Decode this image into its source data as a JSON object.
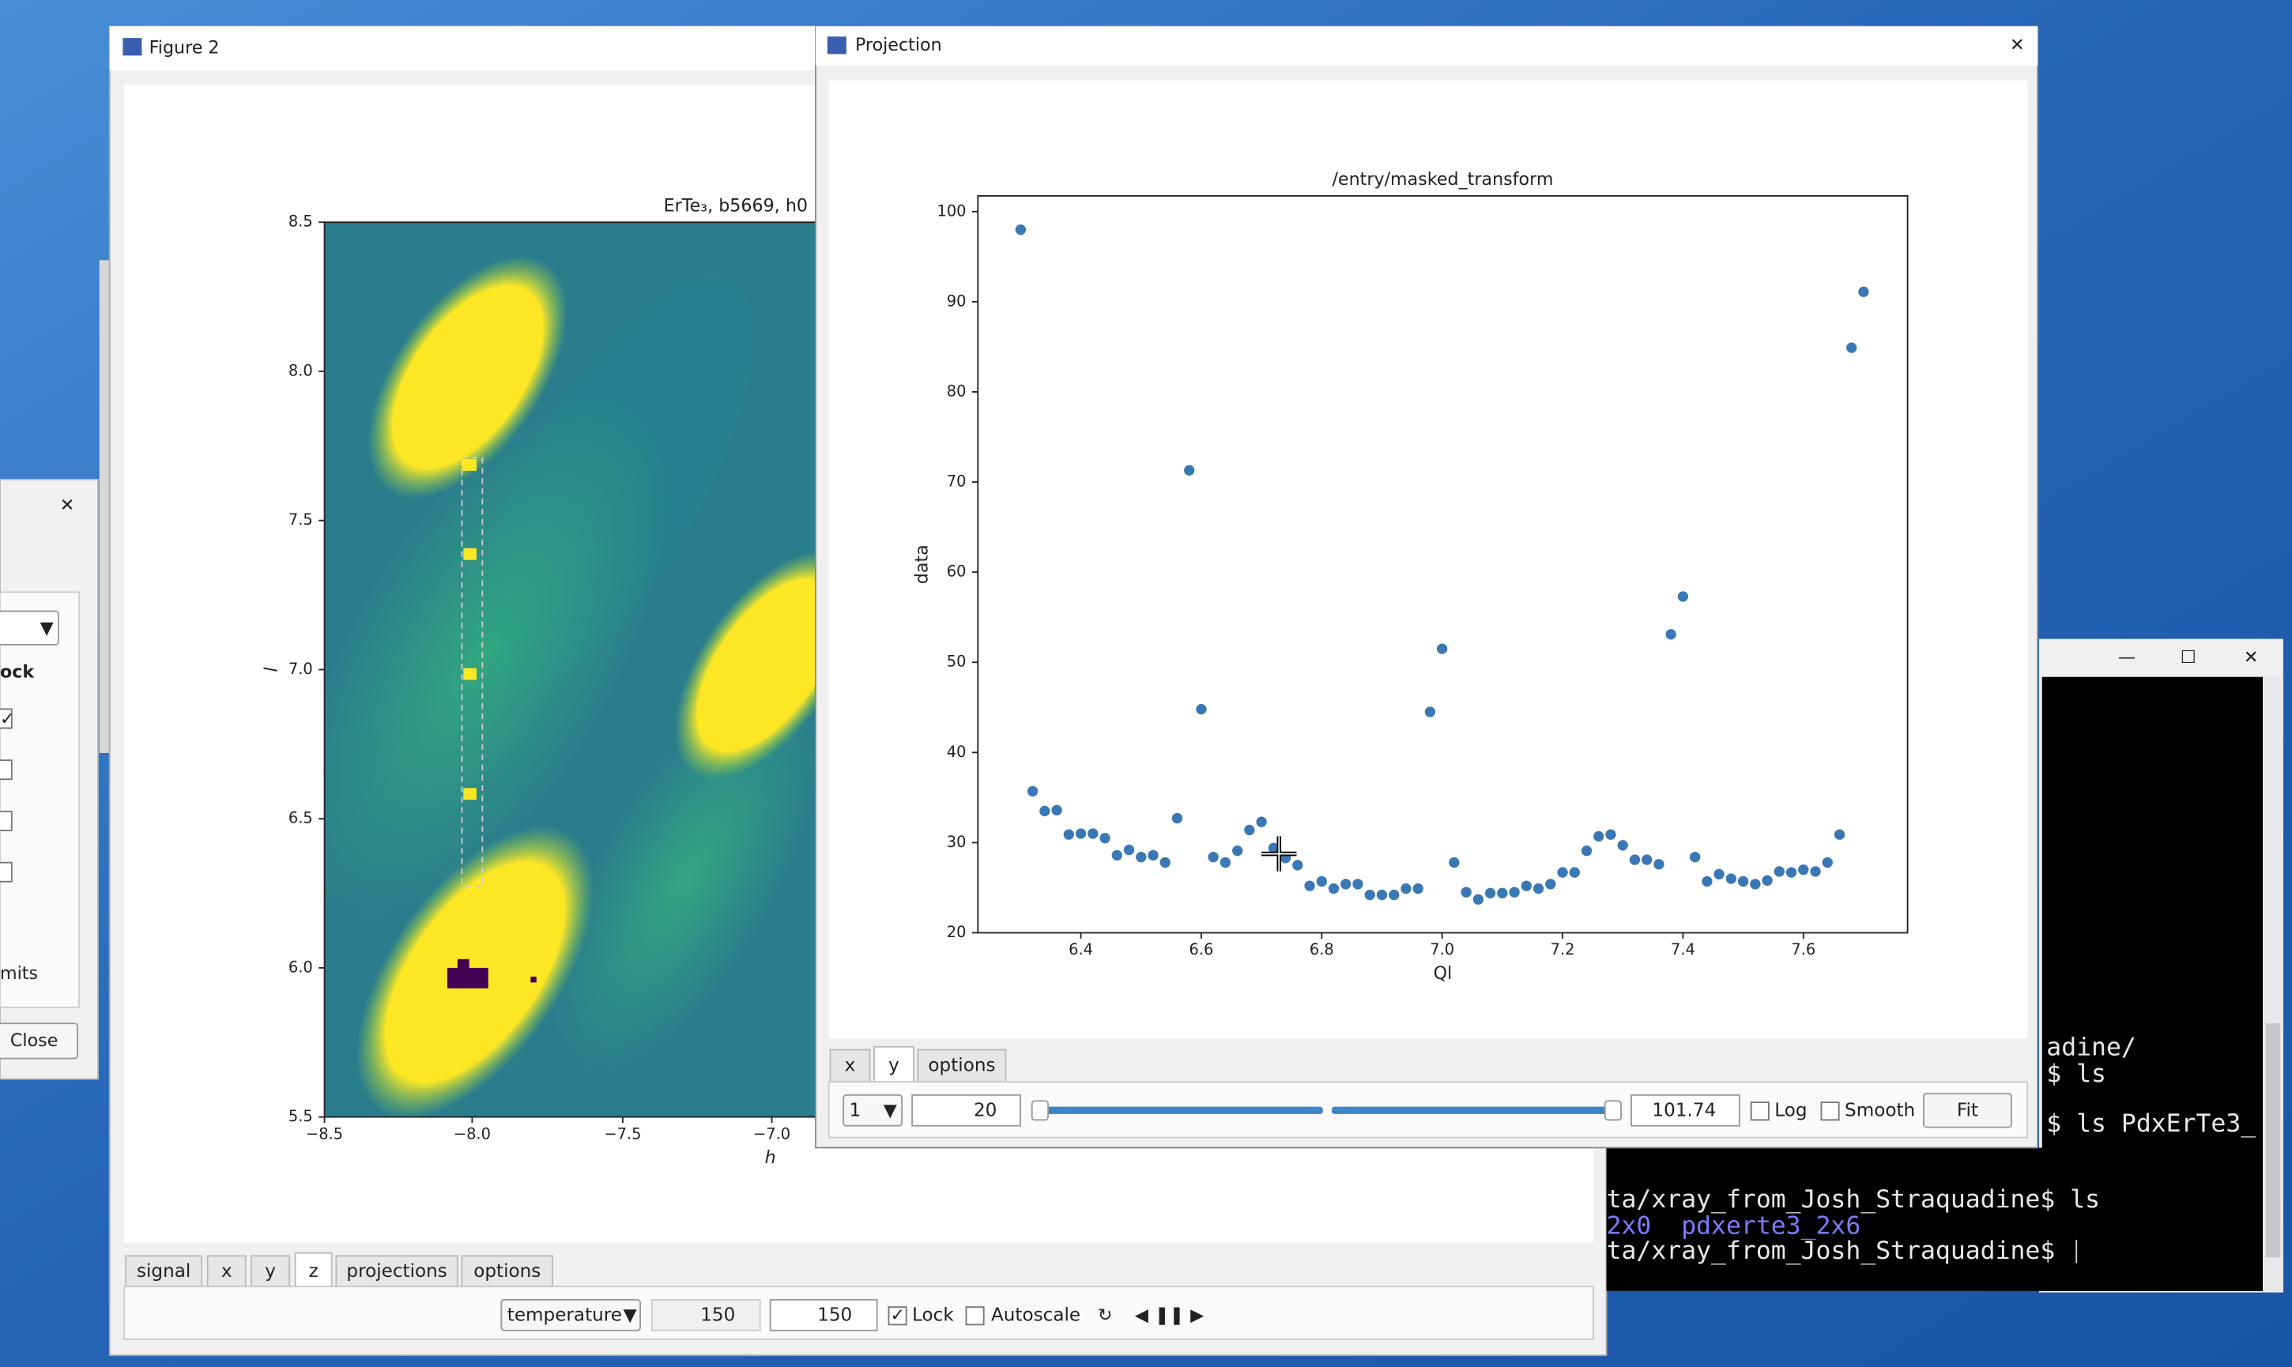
{
  "left_dialog": {
    "label": "ock",
    "limits_label": "mits",
    "close_button": "Close"
  },
  "figure2": {
    "window_title": "Figure 2",
    "plot_title": "ErTe₃, b5669, h0",
    "xlabel": "h",
    "ylabel": "l",
    "xtick_labels": [
      "−8.5",
      "−8.0",
      "−7.5",
      "−7.0"
    ],
    "ytick_labels": [
      "8.5",
      "8.0",
      "7.5",
      "7.0",
      "6.5",
      "6.0",
      "5.5"
    ],
    "tabs": [
      "signal",
      "x",
      "y",
      "z",
      "projections",
      "options"
    ],
    "axis_combo": "temperature",
    "min_value": "150",
    "max_value": "150",
    "lock": "Lock",
    "autoscale": "Autoscale"
  },
  "terminal": {
    "lines": [
      "adine/",
      "$ ls",
      "$ ls PdxErTe3_",
      "ta/xray_from_Josh_Straquadine$ ls",
      "2x0  pdxerte3_2x6",
      "ta/xray_from_Josh_Straquadine$"
    ]
  },
  "projection": {
    "window_title": "Projection",
    "tabs": [
      "x",
      "y",
      "options"
    ],
    "axis_combo": "1",
    "min_value": "20",
    "max_value": "101.74",
    "log": "Log",
    "smooth": "Smooth",
    "fit_button": "Fit"
  },
  "chart_data": {
    "type": "scatter",
    "title": "/entry/masked_transform",
    "x_label": "Ql",
    "y_label": "data",
    "color": "#3a78b5",
    "x": [
      6.3,
      6.32,
      6.34,
      6.36,
      6.38,
      6.4,
      6.42,
      6.44,
      6.46,
      6.48,
      6.5,
      6.52,
      6.54,
      6.56,
      6.58,
      6.6,
      6.62,
      6.64,
      6.66,
      6.68,
      6.7,
      6.72,
      6.74,
      6.76,
      6.78,
      6.8,
      6.82,
      6.84,
      6.86,
      6.88,
      6.9,
      6.92,
      6.94,
      6.96,
      6.98,
      7.0,
      7.02,
      7.04,
      7.06,
      7.08,
      7.1,
      7.12,
      7.14,
      7.16,
      7.18,
      7.2,
      7.22,
      7.24,
      7.26,
      7.28,
      7.3,
      7.32,
      7.34,
      7.36,
      7.38,
      7.4,
      7.42,
      7.44,
      7.46,
      7.48,
      7.5,
      7.52,
      7.54,
      7.56,
      7.58,
      7.6,
      7.62,
      7.64,
      7.66,
      7.68,
      7.7
    ],
    "values": [
      98,
      35.7,
      33.5,
      33.6,
      30.9,
      31.0,
      31.0,
      30.5,
      28.6,
      29.2,
      28.4,
      28.6,
      27.8,
      32.7,
      71.3,
      44.8,
      28.4,
      27.8,
      29.1,
      31.4,
      32.3,
      29.4,
      28.3,
      27.5,
      25.2,
      25.7,
      24.9,
      25.4,
      25.4,
      24.2,
      24.2,
      24.2,
      24.9,
      24.9,
      44.5,
      51.5,
      27.8,
      24.5,
      23.7,
      24.4,
      24.4,
      24.5,
      25.2,
      24.9,
      25.4,
      26.7,
      26.7,
      29.1,
      30.7,
      30.9,
      29.7,
      28.1,
      28.1,
      27.6,
      53.1,
      57.3,
      28.4,
      25.7,
      26.5,
      26.0,
      25.7,
      25.4,
      25.8,
      26.8,
      26.7,
      27.0,
      26.8,
      27.8,
      30.9,
      84.9,
      91.1
    ],
    "xlim": [
      6.229,
      7.773
    ],
    "ylim": [
      20,
      101.74
    ],
    "xticks": [
      6.4,
      6.6,
      6.8,
      {
        "value": 7,
        "label": "7.0"
      },
      7.2,
      7.4,
      7.6
    ],
    "yticks": [
      20,
      30,
      40,
      50,
      60,
      70,
      80,
      90,
      100
    ],
    "grid": false
  }
}
